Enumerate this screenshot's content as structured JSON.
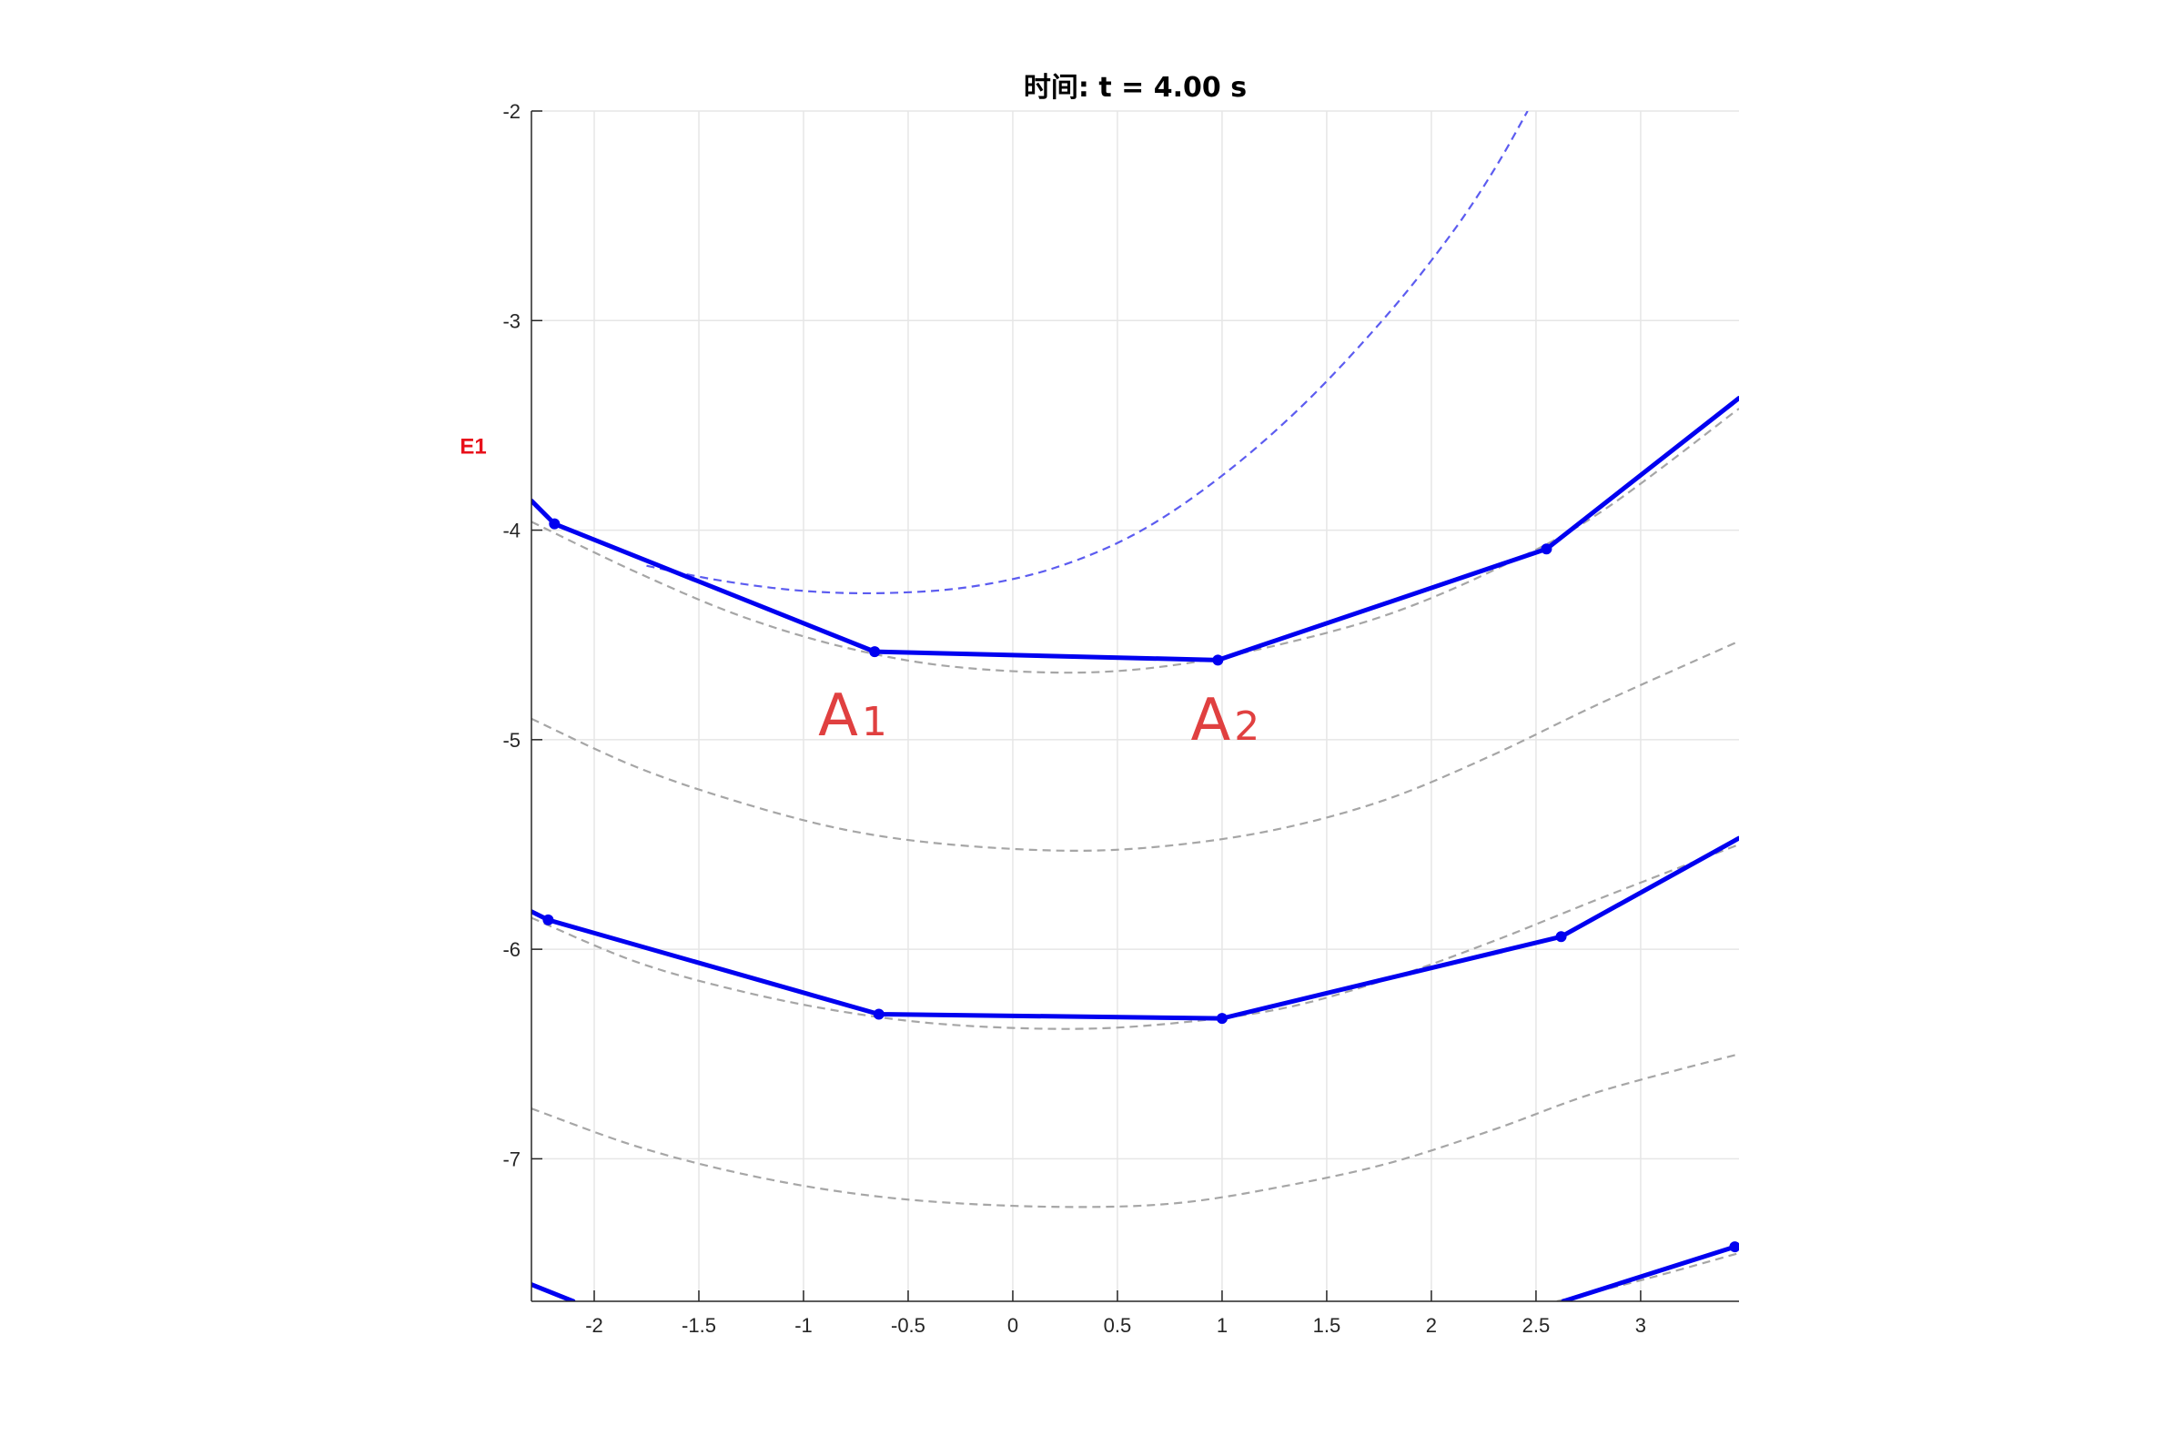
{
  "chart_data": {
    "type": "line",
    "title": "时间: t = 4.00 s",
    "xlabel": "",
    "ylabel": "",
    "xlim": [
      -2.3,
      3.47
    ],
    "ylim": [
      -7.68,
      -2.0
    ],
    "grid": true,
    "x_ticks": [
      -2,
      -1.5,
      -1,
      -0.5,
      0,
      0.5,
      1,
      1.5,
      2,
      2.5,
      3
    ],
    "x_tick_labels": [
      "-2",
      "-1.5",
      "-1",
      "-0.5",
      "0",
      "0.5",
      "1",
      "1.5",
      "2",
      "2.5",
      "3"
    ],
    "y_ticks": [
      -2,
      -3,
      -4,
      -5,
      -6,
      -7
    ],
    "y_tick_labels": [
      "-2",
      "-3",
      "-4",
      "-5",
      "-6",
      "-7"
    ],
    "side_label": {
      "text": "E1",
      "color": "#e8111b",
      "y": -3.6
    },
    "annotations": [
      {
        "letter": "A",
        "sub": "1",
        "x": -0.93,
        "y": -4.98,
        "color": "#e04040"
      },
      {
        "letter": "A",
        "sub": "2",
        "x": 0.85,
        "y": -5.0,
        "color": "#e04040"
      }
    ],
    "colors": {
      "chain": "#0000f0",
      "reference": "#a6a6a6",
      "circle": "#5c5cf0",
      "grid": "#e6e6e6"
    },
    "series": [
      {
        "style": "chain",
        "x": [
          -2.3,
          -2.19,
          -0.66,
          0.98,
          2.55,
          3.47
        ],
        "y": [
          -3.86,
          -3.97,
          -4.58,
          -4.62,
          -4.09,
          -3.37
        ],
        "markers": [
          -2.19,
          -0.66,
          0.98,
          2.55
        ]
      },
      {
        "style": "chain",
        "x": [
          -2.3,
          -2.22,
          -0.64,
          1.0,
          2.62,
          3.47
        ],
        "y": [
          -5.82,
          -5.86,
          -6.31,
          -6.33,
          -5.94,
          -5.47
        ],
        "markers": [
          -2.22,
          -0.64,
          1.0,
          2.62
        ]
      },
      {
        "style": "chain",
        "x": [
          -2.3,
          -2.1
        ],
        "y": [
          -7.6,
          -7.68
        ],
        "markers": []
      },
      {
        "style": "chain",
        "x": [
          2.63,
          3.45
        ],
        "y": [
          -7.68,
          -7.42
        ],
        "markers": [
          3.45
        ]
      },
      {
        "style": "reference",
        "x": [
          -2.3,
          -1.8,
          -1.3,
          -0.8,
          -0.3,
          0.3,
          0.8,
          1.3,
          1.8,
          2.3,
          2.8,
          3.47
        ],
        "y": [
          -3.96,
          -4.2,
          -4.41,
          -4.56,
          -4.65,
          -4.68,
          -4.64,
          -4.54,
          -4.4,
          -4.19,
          -3.92,
          -3.42
        ],
        "markers": []
      },
      {
        "style": "reference",
        "x": [
          -2.3,
          -1.8,
          -1.3,
          -0.8,
          -0.3,
          0.3,
          0.8,
          1.3,
          1.8,
          2.3,
          2.8,
          3.47
        ],
        "y": [
          -4.9,
          -5.13,
          -5.3,
          -5.43,
          -5.5,
          -5.53,
          -5.5,
          -5.42,
          -5.28,
          -5.07,
          -4.83,
          -4.53
        ],
        "markers": []
      },
      {
        "style": "reference",
        "x": [
          -2.3,
          -1.8,
          -1.3,
          -0.8,
          -0.3,
          0.3,
          0.8,
          1.3,
          1.8,
          2.3,
          2.8,
          3.47
        ],
        "y": [
          -5.85,
          -6.06,
          -6.2,
          -6.3,
          -6.36,
          -6.38,
          -6.35,
          -6.28,
          -6.14,
          -5.96,
          -5.76,
          -5.5
        ],
        "markers": []
      },
      {
        "style": "reference",
        "x": [
          -2.3,
          -1.8,
          -1.3,
          -0.8,
          -0.3,
          0.3,
          0.8,
          1.3,
          1.8,
          2.3,
          2.8,
          3.47
        ],
        "y": [
          -6.76,
          -6.94,
          -7.07,
          -7.16,
          -7.21,
          -7.23,
          -7.21,
          -7.13,
          -7.02,
          -6.86,
          -6.68,
          -6.5
        ],
        "markers": []
      },
      {
        "style": "reference",
        "x": [
          2.6,
          3.0,
          3.47
        ],
        "y": [
          -7.68,
          -7.58,
          -7.45
        ],
        "markers": []
      },
      {
        "style": "circle",
        "x": [
          -1.75,
          -1.4,
          -1.0,
          -0.6,
          -0.2,
          0.2,
          0.6,
          1.0,
          1.4,
          1.8,
          2.1,
          2.3,
          2.46
        ],
        "y": [
          -4.17,
          -4.24,
          -4.29,
          -4.3,
          -4.27,
          -4.18,
          -4.01,
          -3.74,
          -3.39,
          -2.96,
          -2.58,
          -2.28,
          -2.0
        ],
        "markers": []
      }
    ]
  }
}
